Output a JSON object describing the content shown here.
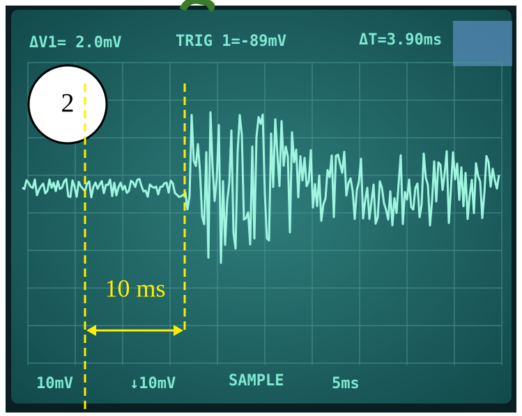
{
  "screen": {
    "top_readouts": [
      "ΔV1= 2.0mV",
      "TRIG 1=-89mV",
      "ΔT=3.90ms"
    ],
    "bottom_readouts": [
      "10mV",
      "↓10mV",
      "SAMPLE",
      "5ms"
    ]
  },
  "annotations": {
    "circle_label": "2",
    "interval_label": "10 ms"
  }
}
